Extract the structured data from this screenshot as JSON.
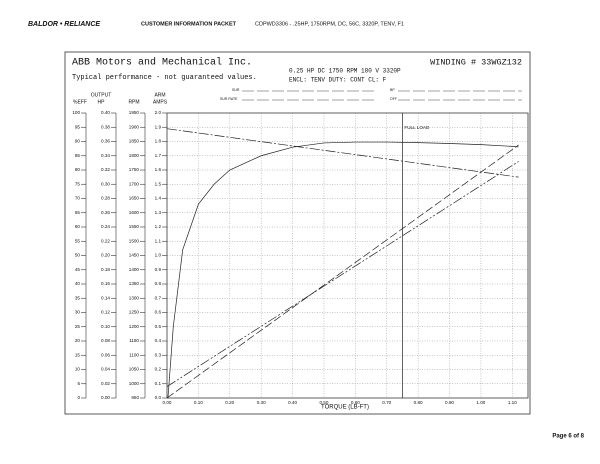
{
  "header": {
    "logo": "BALDOR • RELIANCE",
    "section": "CUSTOMER INFORMATION PACKET",
    "product": "CDPWD3306 - .25HP, 1750RPM, DC, 56C, 3320P, TENV, F1"
  },
  "chart_data": {
    "type": "line",
    "title": "ABB Motors and Mechanical Inc.",
    "winding": "WINDING # 33WGZ132",
    "subtitle": "Typical performance - not guaranteed values.",
    "specs": [
      "0.25 HP  DC  1750 RPM  180 V  3320P",
      "ENCL: TENV  DUTY: CONT  CL: F"
    ],
    "fields": [
      "SUR",
      "SUR RATE",
      "BP",
      "OFF"
    ],
    "xlabel": "TORQUE (LB-FT)",
    "xlim": [
      0,
      1.15
    ],
    "xticks": [
      {
        "value": 0,
        "label": "0.00"
      },
      {
        "value": 0.1,
        "label": "0.10"
      },
      {
        "value": 0.2,
        "label": "0.20"
      },
      {
        "value": 0.3,
        "label": "0.30"
      },
      {
        "value": 0.4,
        "label": "0.40"
      },
      {
        "value": 0.5,
        "label": "0.50"
      },
      {
        "value": 0.6,
        "label": "0.60"
      },
      {
        "value": 0.7,
        "label": "0.70"
      },
      {
        "value": 0.8,
        "label": "0.80"
      },
      {
        "value": 0.9,
        "label": "0.90"
      },
      {
        "value": 1,
        "label": "1.00"
      },
      {
        "value": 1.1,
        "label": "1.10"
      }
    ],
    "grid": true,
    "y_axes": [
      {
        "label": [
          "%EFF"
        ],
        "ylim": [
          0,
          100
        ],
        "yticks": [
          0,
          5,
          10,
          15,
          20,
          25,
          30,
          35,
          40,
          45,
          50,
          55,
          60,
          65,
          70,
          75,
          80,
          85,
          90,
          95,
          100
        ]
      },
      {
        "label": [
          "OUTPUT",
          "HP"
        ],
        "ylim": [
          0,
          0.4
        ],
        "yticks": [
          {
            "value": 0,
            "label": "0.00"
          },
          {
            "value": 0.02,
            "label": "0.02"
          },
          {
            "value": 0.04,
            "label": "0.04"
          },
          {
            "value": 0.06,
            "label": "0.06"
          },
          {
            "value": 0.08,
            "label": "0.08"
          },
          {
            "value": 0.1,
            "label": "0.10"
          },
          {
            "value": 0.12,
            "label": "0.12"
          },
          {
            "value": 0.14,
            "label": "0.14"
          },
          {
            "value": 0.16,
            "label": "0.16"
          },
          {
            "value": 0.18,
            "label": "0.18"
          },
          {
            "value": 0.2,
            "label": "0.20"
          },
          {
            "value": 0.22,
            "label": "0.22"
          },
          {
            "value": 0.24,
            "label": "0.24"
          },
          {
            "value": 0.26,
            "label": "0.26"
          },
          {
            "value": 0.28,
            "label": "0.28"
          },
          {
            "value": 0.3,
            "label": "0.30"
          },
          {
            "value": 0.32,
            "label": "0.32"
          },
          {
            "value": 0.34,
            "label": "0.34"
          },
          {
            "value": 0.36,
            "label": "0.36"
          },
          {
            "value": 0.38,
            "label": "0.38"
          },
          {
            "value": 0.4,
            "label": "0.40"
          }
        ]
      },
      {
        "label": [
          "RPM"
        ],
        "ylim": [
          950,
          1950
        ],
        "yticks": [
          950,
          1000,
          1050,
          1100,
          1150,
          1200,
          1250,
          1300,
          1350,
          1400,
          1450,
          1500,
          1550,
          1600,
          1650,
          1700,
          1750,
          1800,
          1850,
          1900,
          1950
        ]
      },
      {
        "label": [
          "ARM",
          "AMPS"
        ],
        "ylim": [
          0,
          2
        ],
        "yticks": [
          {
            "value": 0,
            "label": "0.0"
          },
          {
            "value": 0.1,
            "label": "0.1"
          },
          {
            "value": 0.2,
            "label": "0.2"
          },
          {
            "value": 0.3,
            "label": "0.3"
          },
          {
            "value": 0.4,
            "label": "0.4"
          },
          {
            "value": 0.5,
            "label": "0.5"
          },
          {
            "value": 0.6,
            "label": "0.6"
          },
          {
            "value": 0.7,
            "label": "0.7"
          },
          {
            "value": 0.8,
            "label": "0.8"
          },
          {
            "value": 0.9,
            "label": "0.9"
          },
          {
            "value": 1,
            "label": "1.0"
          },
          {
            "value": 1.1,
            "label": "1.1"
          },
          {
            "value": 1.2,
            "label": "1.2"
          },
          {
            "value": 1.3,
            "label": "1.3"
          },
          {
            "value": 1.4,
            "label": "1.4"
          },
          {
            "value": 1.5,
            "label": "1.5"
          },
          {
            "value": 1.6,
            "label": "1.6"
          },
          {
            "value": 1.7,
            "label": "1.7"
          },
          {
            "value": 1.8,
            "label": "1.8"
          },
          {
            "value": 1.9,
            "label": "1.9"
          },
          {
            "value": 2,
            "label": "2.0"
          }
        ]
      }
    ],
    "series": [
      {
        "axis": 0,
        "color": "#222",
        "style": "solid",
        "x": [
          0.003,
          0.02,
          0.05,
          0.1,
          0.15,
          0.2,
          0.3,
          0.4,
          0.5,
          0.6,
          0.7,
          0.8,
          0.9,
          1.0,
          1.1,
          1.12
        ],
        "values": [
          0,
          25,
          52,
          68,
          75,
          80,
          85,
          88,
          89.5,
          89.8,
          89.8,
          89.6,
          89.3,
          88.9,
          88.3,
          88.1
        ]
      },
      {
        "axis": 2,
        "color": "#222",
        "style": "dashdot",
        "x": [
          0,
          1.12
        ],
        "values": [
          1895,
          1725
        ]
      },
      {
        "axis": 1,
        "color": "#222",
        "style": "dashed",
        "x": [
          0,
          1.12
        ],
        "values": [
          0,
          0.355
        ]
      },
      {
        "axis": 3,
        "color": "#222",
        "style": "dashdotdot",
        "x": [
          0,
          1.12
        ],
        "values": [
          0.08,
          1.66
        ]
      }
    ],
    "full_load": {
      "value": 0.75,
      "label": "FULL LOAD"
    }
  },
  "footer": {
    "page": "Page 6 of 8"
  }
}
